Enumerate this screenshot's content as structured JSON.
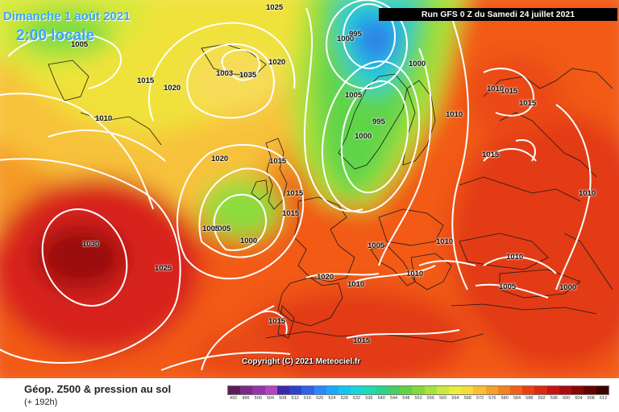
{
  "header": {
    "date": "Dimanche 1 août 2021",
    "time": "2:00 locale",
    "run": "Run GFS 0 Z du Samedi 24 juillet 2021"
  },
  "copyright": "Copyright (C) 2021 Meteociel.fr",
  "footer": {
    "title": "Géop. Z500 & pression au sol",
    "subtitle": "(+ 192h)"
  },
  "isobars": [
    "1025",
    "1000",
    "995",
    "1000",
    "1005",
    "995",
    "1000",
    "1005",
    "1035",
    "1020",
    "1015",
    "1010",
    "1020",
    "1015",
    "1005",
    "1000",
    "1030",
    "1025",
    "1020",
    "1010",
    "1010",
    "1010",
    "1015",
    "1015",
    "1015",
    "1015",
    "1010",
    "1010",
    "1005",
    "1000",
    "1010",
    "1015",
    "1010",
    "1005",
    "1015",
    "1015",
    "1003",
    "1005",
    "1020"
  ],
  "legend": {
    "labels": [
      "492",
      "496",
      "500",
      "504",
      "508",
      "512",
      "516",
      "520",
      "524",
      "528",
      "532",
      "536",
      "540",
      "544",
      "548",
      "552",
      "556",
      "560",
      "564",
      "568",
      "572",
      "576",
      "580",
      "584",
      "588",
      "592",
      "596",
      "600",
      "604",
      "608",
      "612"
    ],
    "colors": [
      "#5c1c5c",
      "#7a2a86",
      "#9933aa",
      "#b444c4",
      "#3a2aa8",
      "#2e40cc",
      "#2e62e8",
      "#2e86ff",
      "#1aa8ff",
      "#13c6f0",
      "#19d6d6",
      "#1fdcb2",
      "#2ad48c",
      "#44d065",
      "#62d243",
      "#86d83a",
      "#a8e23a",
      "#cce83a",
      "#e8ee3a",
      "#f6dc38",
      "#f8c030",
      "#f6a028",
      "#f48020",
      "#f06018",
      "#e84010",
      "#dc2810",
      "#c81410",
      "#a80c0c",
      "#880606",
      "#640202",
      "#3c0000"
    ]
  }
}
